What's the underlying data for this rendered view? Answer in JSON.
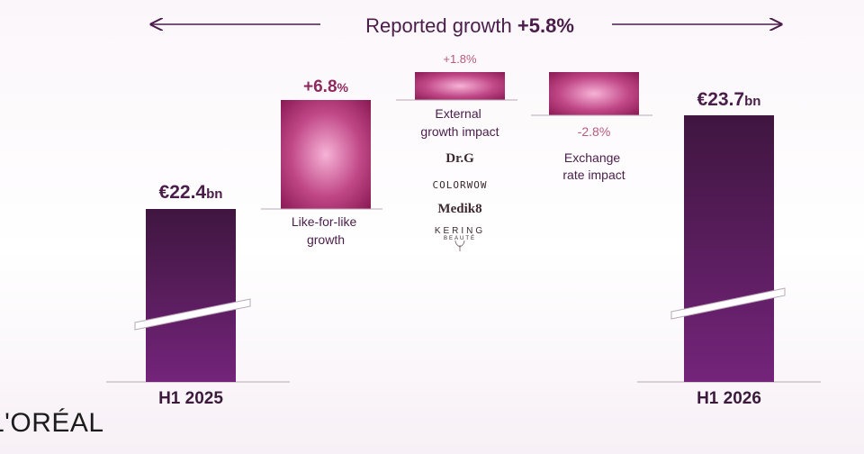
{
  "chart_data": {
    "type": "bar",
    "subtype": "waterfall",
    "title": "Reported growth",
    "title_value": "+5.8%",
    "total_bars": [
      {
        "label": "H1 2025",
        "value": 22.4,
        "value_label": "€22.4",
        "unit": "bn"
      },
      {
        "label": "H1 2026",
        "value": 23.7,
        "value_label": "€23.7",
        "unit": "bn"
      }
    ],
    "steps": [
      {
        "name": "Like-for-like growth",
        "label_lines": [
          "Like-for-like",
          "growth"
        ],
        "value": 6.8,
        "value_label": "+6.8",
        "unit": "%"
      },
      {
        "name": "External growth impact",
        "label_lines": [
          "External",
          "growth impact"
        ],
        "value": 1.8,
        "value_label": "+1.8%"
      },
      {
        "name": "Exchange rate impact",
        "label_lines": [
          "Exchange",
          "rate impact"
        ],
        "value": -2.8,
        "value_label": "-2.8%"
      }
    ],
    "acquired_brands": [
      "Dr.G",
      "COLORWOW",
      "Medik8",
      "KERING",
      "BEAUTÉ"
    ],
    "axis_break": true,
    "colors": {
      "total": "#4b1b4d",
      "total_bottom": "#6e2373",
      "step_center": "#f4a8d2",
      "step_edge": "#8e1c55",
      "text": "#4a1d4a",
      "pink_label": "#b9597f"
    }
  },
  "logo": "L'ORÉAL"
}
